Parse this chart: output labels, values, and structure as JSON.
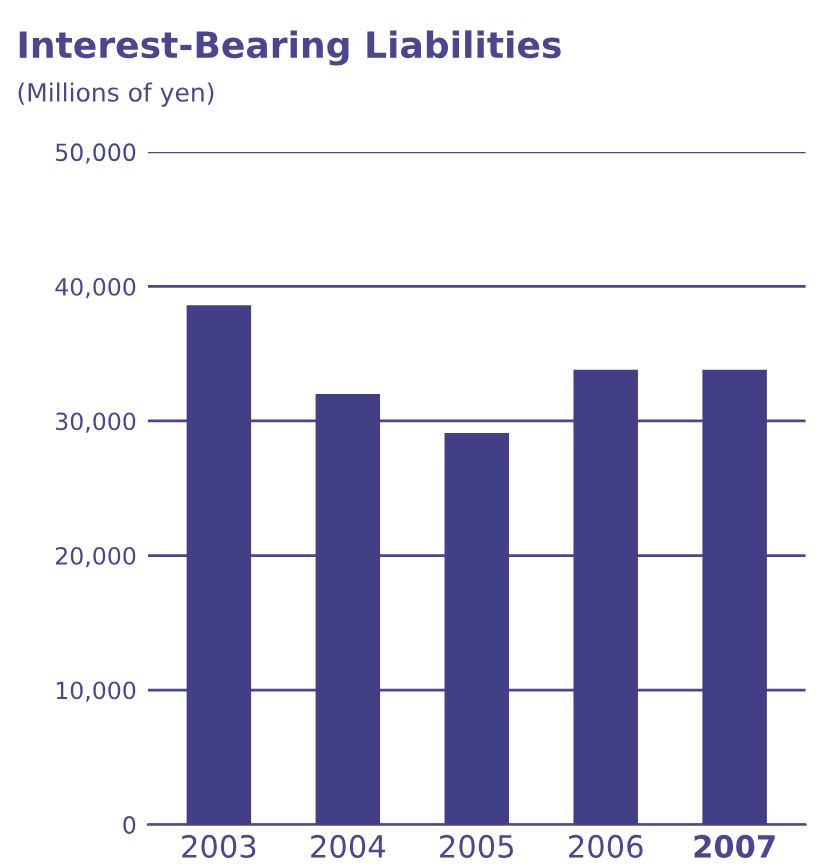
{
  "chart_data": {
    "type": "bar",
    "title": "Interest-Bearing Liabilities",
    "subtitle": "(Millions of yen)",
    "categories": [
      "2003",
      "2004",
      "2005",
      "2006",
      "2007"
    ],
    "values": [
      38600,
      32000,
      29100,
      33800,
      33800
    ],
    "color": "#433f87",
    "ylim": [
      0,
      50000
    ],
    "yticks": [
      {
        "value": 0,
        "label": "0"
      },
      {
        "value": 10000,
        "label": "10,000"
      },
      {
        "value": 20000,
        "label": "20,000"
      },
      {
        "value": 30000,
        "label": "30,000"
      },
      {
        "value": 40000,
        "label": "40,000"
      },
      {
        "value": 50000,
        "label": "50,000"
      }
    ],
    "grid": "y"
  }
}
